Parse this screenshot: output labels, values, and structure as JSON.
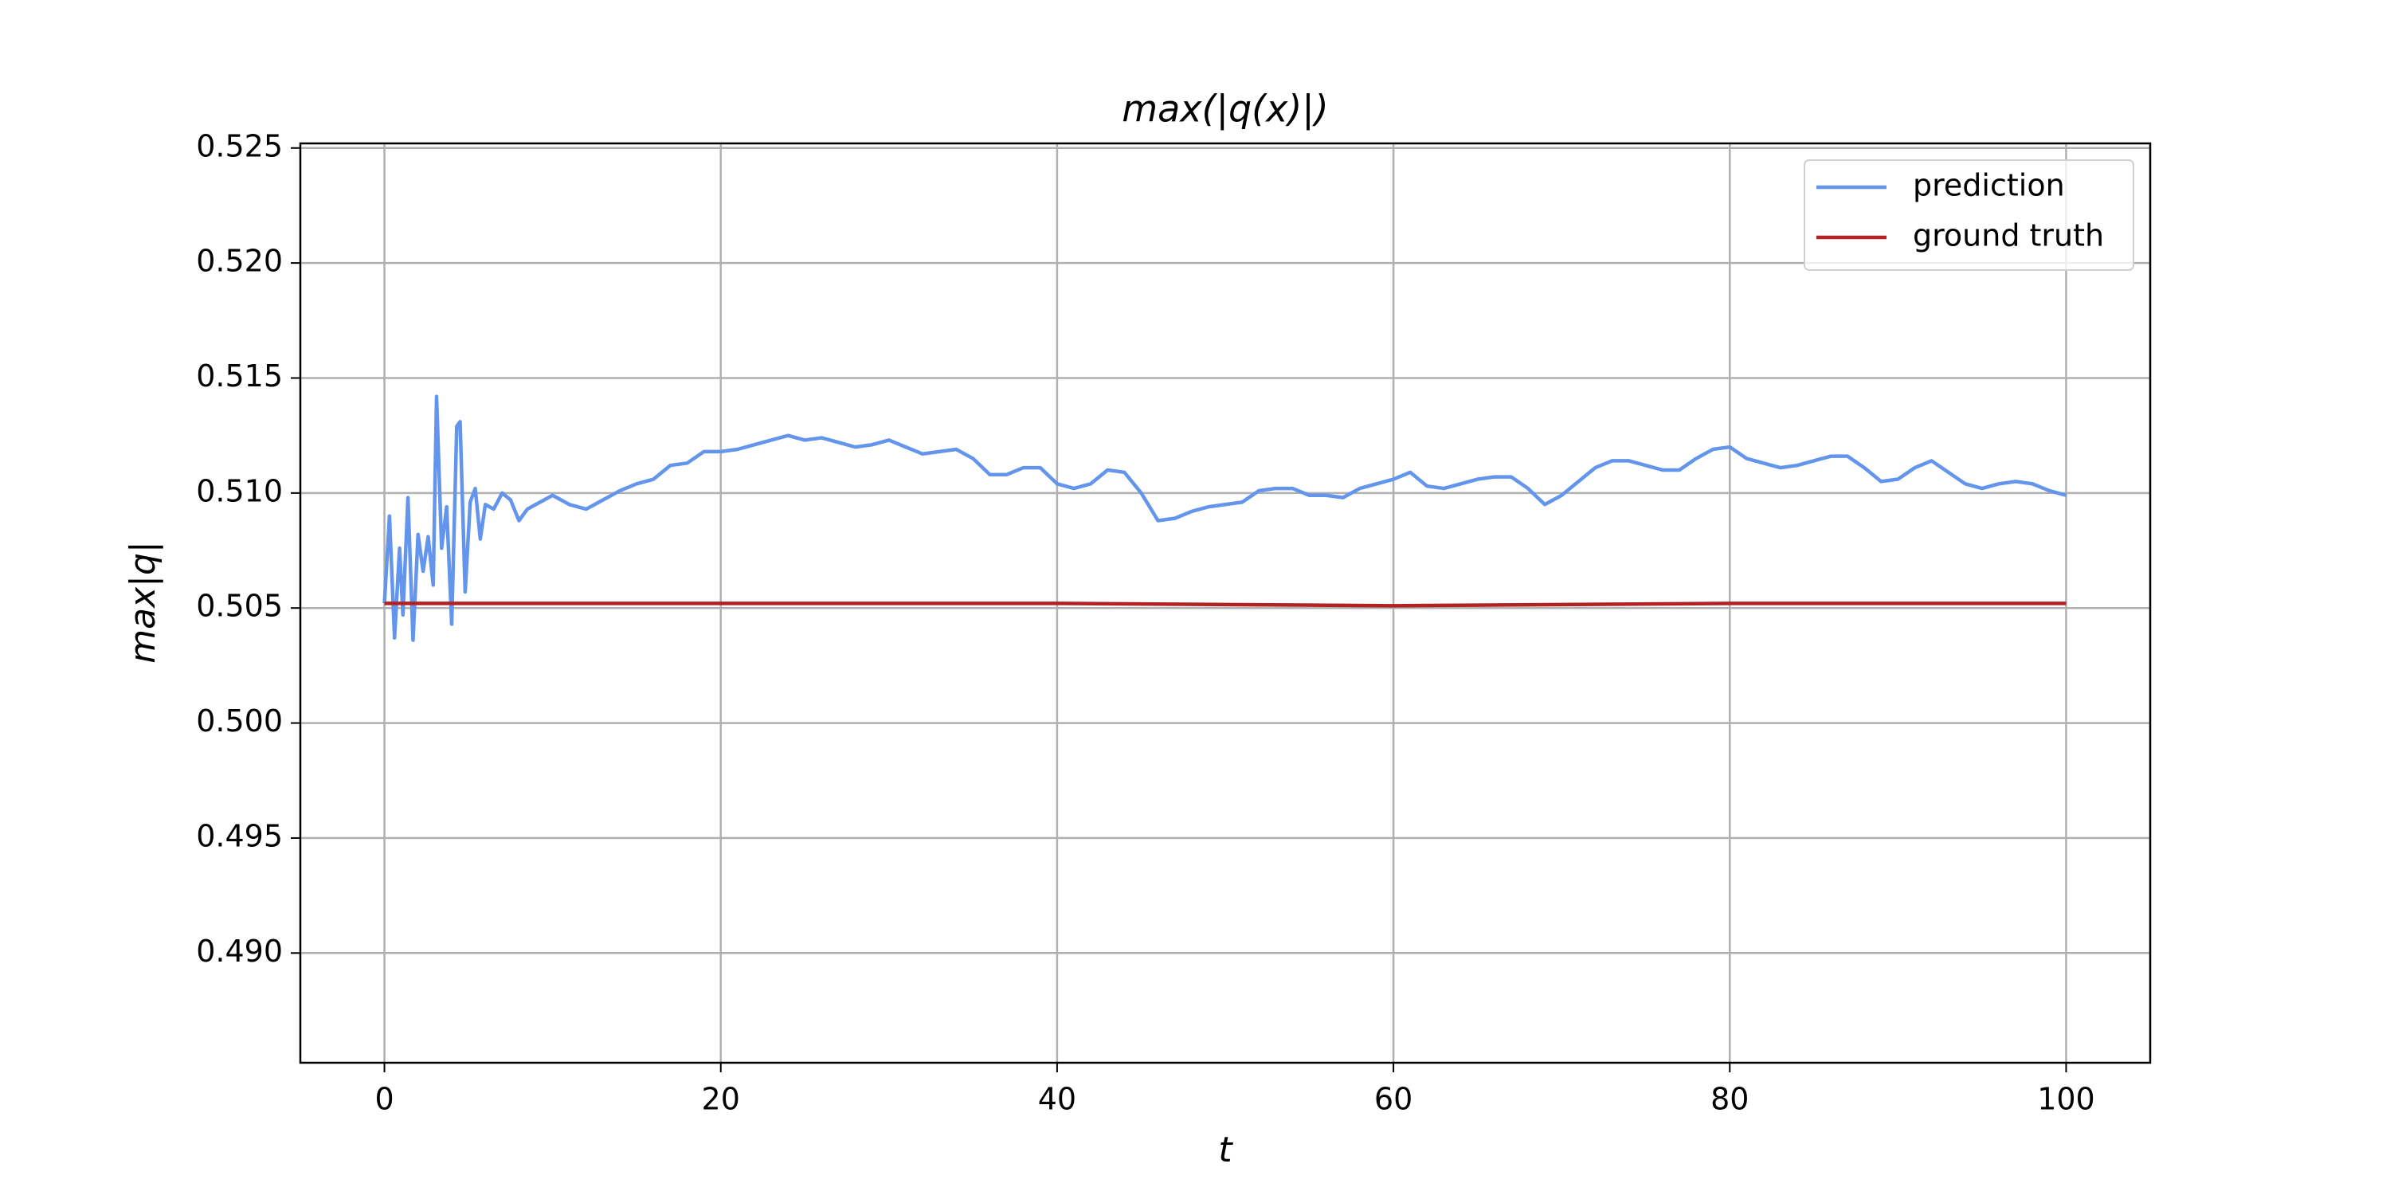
{
  "chart_data": {
    "type": "line",
    "title": "max(|q(x)|)",
    "xlabel": "t",
    "ylabel": "max|q|",
    "xlim": [
      -5,
      105
    ],
    "ylim": [
      0.48523,
      0.5252
    ],
    "xticks": [
      0,
      20,
      40,
      60,
      80,
      100
    ],
    "yticks": [
      {
        "value": 0.49,
        "label": "0.490"
      },
      0.495,
      {
        "value": 0.5,
        "label": "0.500"
      },
      0.505,
      {
        "value": 0.51,
        "label": "0.510"
      },
      0.515,
      {
        "value": 0.52,
        "label": "0.520"
      },
      0.525
    ],
    "grid": true,
    "legend": "upper right",
    "series": [
      {
        "name": "prediction",
        "color": "#6495ed",
        "x": [
          0,
          0.3,
          0.6,
          0.9,
          1.1,
          1.4,
          1.7,
          2.0,
          2.3,
          2.6,
          2.9,
          3.1,
          3.4,
          3.7,
          4.0,
          4.3,
          4.5,
          4.8,
          5.1,
          5.4,
          5.7,
          6,
          6.5,
          7,
          7.5,
          8,
          8.5,
          9,
          10,
          11,
          12,
          13,
          14,
          15,
          16,
          17,
          18,
          19,
          20,
          21,
          22,
          23,
          24,
          25,
          26,
          27,
          28,
          29,
          30,
          31,
          32,
          33,
          34,
          35,
          36,
          37,
          38,
          39,
          40,
          41,
          42,
          43,
          44,
          45,
          46,
          47,
          48,
          49,
          50,
          51,
          52,
          53,
          54,
          55,
          56,
          57,
          58,
          59,
          60,
          61,
          62,
          63,
          64,
          65,
          66,
          67,
          68,
          69,
          70,
          71,
          72,
          73,
          74,
          75,
          76,
          77,
          78,
          79,
          80,
          81,
          82,
          83,
          84,
          85,
          86,
          87,
          88,
          89,
          90,
          91,
          92,
          93,
          94,
          95,
          96,
          97,
          98,
          99,
          100
        ],
        "values": [
          0.5052,
          0.509,
          0.5037,
          0.5076,
          0.5047,
          0.5098,
          0.5036,
          0.5082,
          0.5066,
          0.5081,
          0.506,
          0.5142,
          0.5076,
          0.5094,
          0.5043,
          0.5129,
          0.5131,
          0.5057,
          0.5096,
          0.5102,
          0.508,
          0.5095,
          0.5093,
          0.51,
          0.5097,
          0.5088,
          0.5093,
          0.5095,
          0.5099,
          0.5095,
          0.5093,
          0.5097,
          0.5101,
          0.5104,
          0.5106,
          0.5112,
          0.5113,
          0.5118,
          0.5118,
          0.5119,
          0.5121,
          0.5123,
          0.5125,
          0.5123,
          0.5124,
          0.5122,
          0.512,
          0.5121,
          0.5123,
          0.512,
          0.5117,
          0.5118,
          0.5119,
          0.5115,
          0.5108,
          0.5108,
          0.5111,
          0.5111,
          0.5104,
          0.5102,
          0.5104,
          0.511,
          0.5109,
          0.51,
          0.5088,
          0.5089,
          0.5092,
          0.5094,
          0.5095,
          0.5096,
          0.5101,
          0.5102,
          0.5102,
          0.5099,
          0.5099,
          0.5098,
          0.5102,
          0.5104,
          0.5106,
          0.5109,
          0.5103,
          0.5102,
          0.5104,
          0.5106,
          0.5107,
          0.5107,
          0.5102,
          0.5095,
          0.5099,
          0.5105,
          0.5111,
          0.5114,
          0.5114,
          0.5112,
          0.511,
          0.511,
          0.5115,
          0.5119,
          0.512,
          0.5115,
          0.5113,
          0.5111,
          0.5112,
          0.5114,
          0.5116,
          0.5116,
          0.5111,
          0.5105,
          0.5106,
          0.5111,
          0.5114,
          0.5109,
          0.5104,
          0.5102,
          0.5104,
          0.5105,
          0.5104,
          0.5101,
          0.5099
        ]
      },
      {
        "name": "ground truth",
        "color": "#b22222",
        "x": [
          0,
          20,
          40,
          50,
          60,
          70,
          80,
          100
        ],
        "values": [
          0.5052,
          0.5052,
          0.5052,
          0.50515,
          0.5051,
          0.50515,
          0.5052,
          0.5052
        ]
      }
    ]
  }
}
